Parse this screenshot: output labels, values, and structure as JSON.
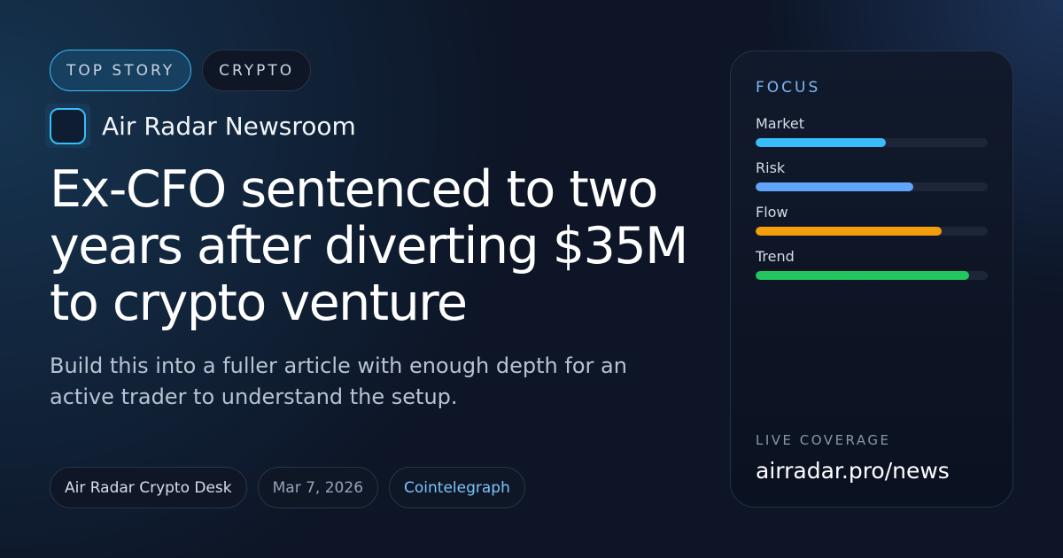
{
  "tags": [
    "TOP STORY",
    "CRYPTO"
  ],
  "brand": {
    "name": "Air Radar Newsroom",
    "icon": "radar-logo-icon"
  },
  "headline": "Ex-CFO sentenced to two years after diverting $35M to crypto venture",
  "subtitle": "Build this into a fuller article with enough depth for an active trader to understand the setup.",
  "meta": {
    "desk": "Air Radar Crypto Desk",
    "date": "Mar 7, 2026",
    "source": "Cointelegraph"
  },
  "focus": {
    "title": "FOCUS",
    "items": [
      {
        "label": "Market",
        "value": 56,
        "color": "#38bdf8"
      },
      {
        "label": "Risk",
        "value": 68,
        "color": "#60a5fa"
      },
      {
        "label": "Flow",
        "value": 80,
        "color": "#f59e0b"
      },
      {
        "label": "Trend",
        "value": 92,
        "color": "#22c55e"
      }
    ]
  },
  "coverage": {
    "label": "LIVE COVERAGE",
    "url": "airradar.pro/news"
  }
}
